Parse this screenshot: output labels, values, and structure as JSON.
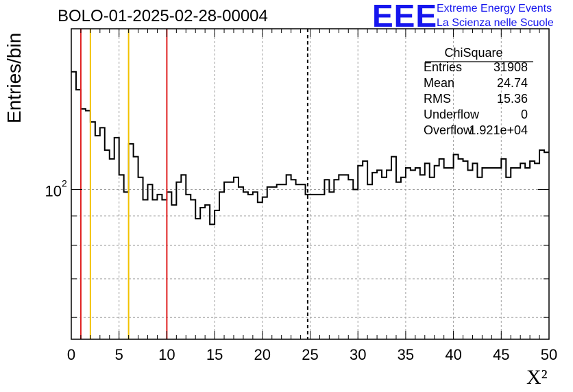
{
  "title": "BOLO-01-2025-02-28-00004",
  "logo": {
    "mark": "EEE",
    "line1": "Extreme Energy Events",
    "line2": "La Scienza nelle Scuole",
    "color": "#1616ee"
  },
  "stats": {
    "name": "ChiSquare",
    "rows": [
      {
        "key": "Entries",
        "value": "31908"
      },
      {
        "key": "Mean",
        "value": "24.74"
      },
      {
        "key": "RMS",
        "value": "15.36"
      },
      {
        "key": "Underflow",
        "value": "0"
      },
      {
        "key": "Overflow",
        "value": "1.921e+04"
      }
    ]
  },
  "chart_data": {
    "type": "histogram",
    "title": "BOLO-01-2025-02-28-00004",
    "xlabel": "X²",
    "ylabel": "Entries/bin",
    "xlim": [
      0,
      50
    ],
    "ylim": [
      55,
      190
    ],
    "yscale": "log",
    "grid": true,
    "x_ticks": [
      "0",
      "5",
      "10",
      "15",
      "20",
      "25",
      "30",
      "35",
      "40",
      "45",
      "50"
    ],
    "y_tick_label": "10",
    "y_tick_exp": "2",
    "y_tick_value": 100,
    "bin_width": 0.5,
    "bin_start": 0,
    "values": [
      160,
      149,
      138,
      137,
      131,
      124,
      128,
      117,
      113,
      123,
      106,
      99,
      120,
      114,
      105,
      96,
      102,
      96,
      98,
      96,
      99,
      94,
      103,
      106,
      98,
      96,
      89,
      93,
      94,
      87,
      92,
      99,
      103,
      103,
      105,
      101,
      99,
      98,
      99,
      95,
      97,
      101,
      101,
      102,
      102,
      106,
      104,
      102,
      102,
      98,
      98,
      98,
      98,
      104,
      99,
      104,
      106,
      106,
      104,
      100,
      110,
      112,
      102,
      107,
      108,
      105,
      108,
      114,
      103,
      105,
      109,
      108,
      109,
      106,
      111,
      105,
      110,
      113,
      109,
      109,
      115,
      113,
      112,
      108,
      111,
      105,
      109,
      109,
      109,
      109,
      113,
      105,
      109,
      109,
      111,
      109,
      112,
      111,
      117,
      116
    ],
    "vertical_lines": [
      {
        "x": 1,
        "color": "#e02020",
        "style": "solid"
      },
      {
        "x": 2,
        "color": "#f2c200",
        "style": "solid"
      },
      {
        "x": 6,
        "color": "#f2c200",
        "style": "solid"
      },
      {
        "x": 10,
        "color": "#e02020",
        "style": "solid"
      },
      {
        "x": 24.74,
        "color": "#000000",
        "style": "dashed"
      }
    ]
  }
}
